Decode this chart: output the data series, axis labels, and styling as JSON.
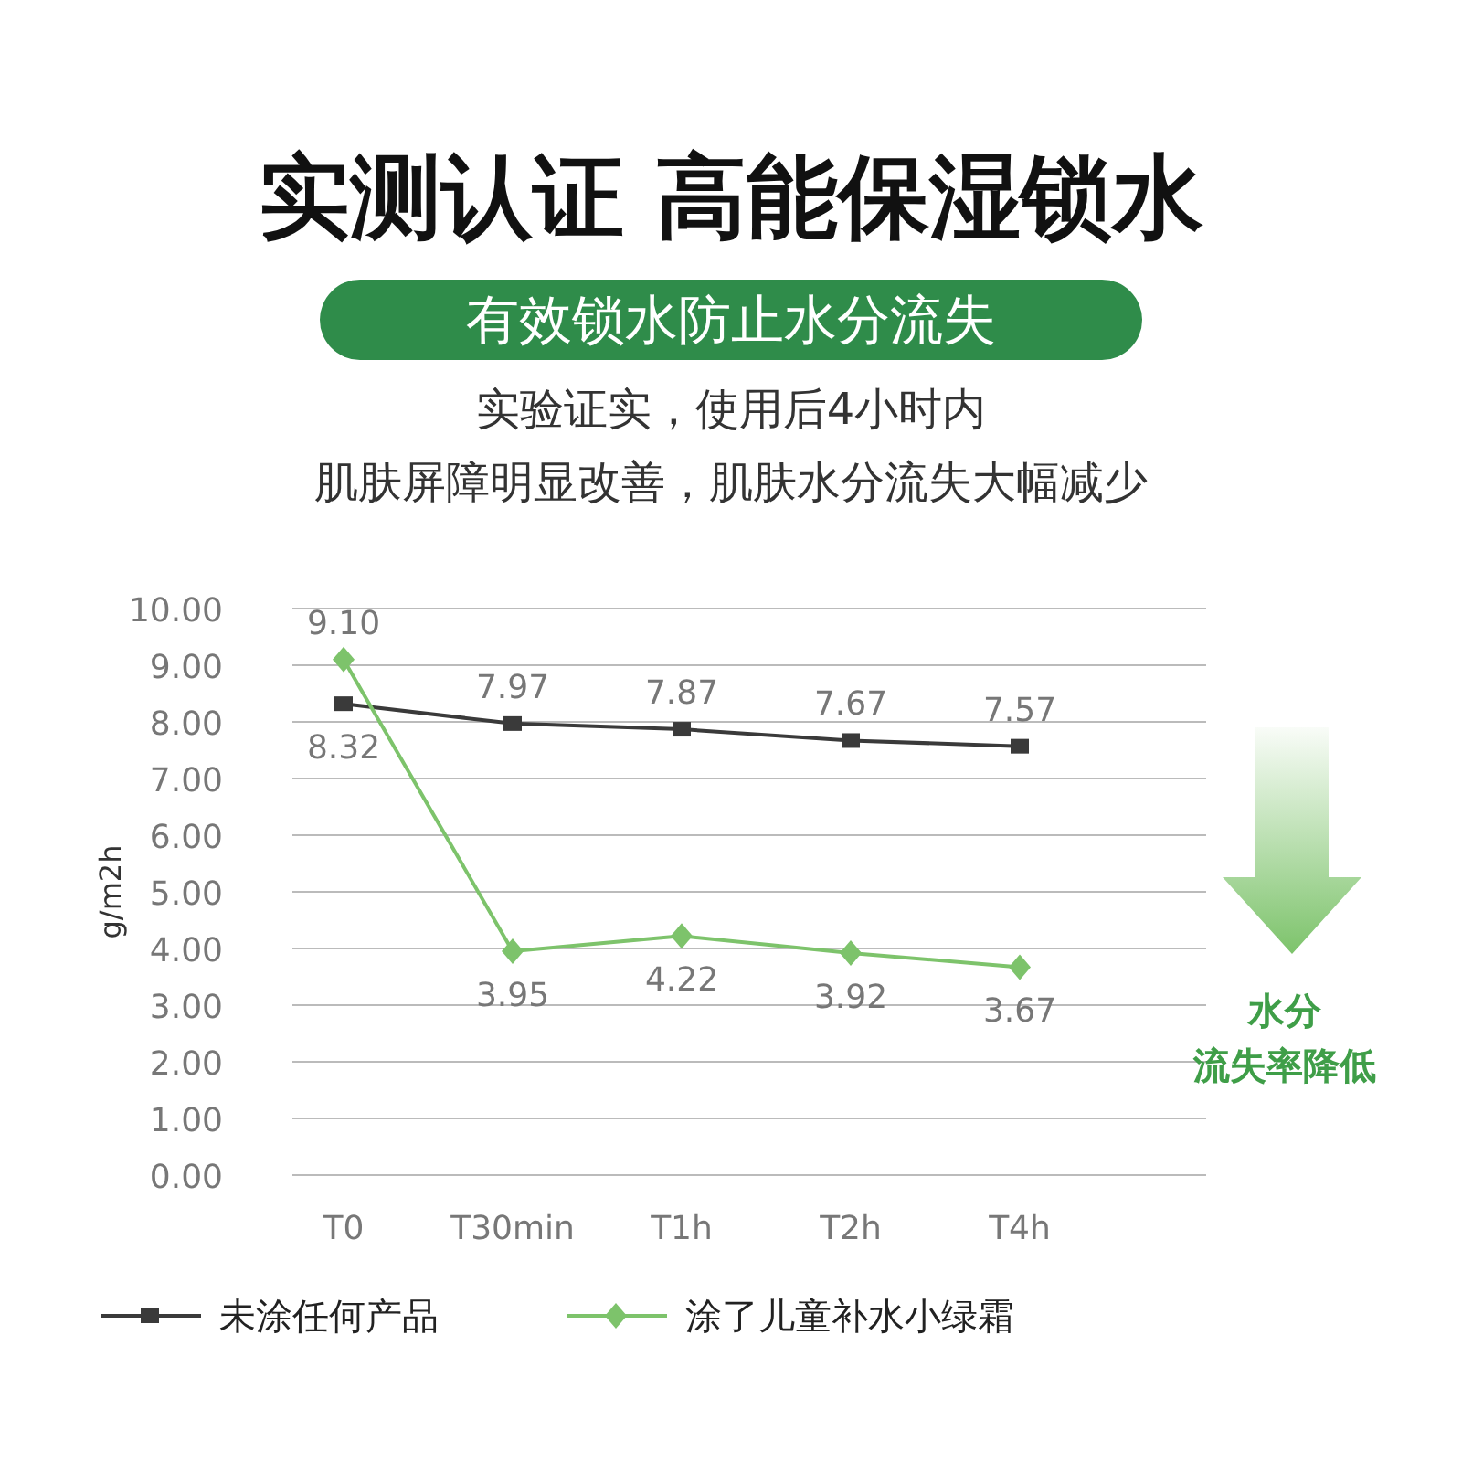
{
  "chart_data": {
    "type": "line",
    "title": "实测认证  高能保湿锁水",
    "subtitle": "有效锁水防止水分流失",
    "annotations": [
      "实验证实，使用后4小时内",
      "肌肤屏障明显改善，肌肤水分流失大幅减少",
      "水分",
      "流失率降低"
    ],
    "ylabel": "g/m2h",
    "categories": [
      "T0",
      "T30min",
      "T1h",
      "T2h",
      "T4h"
    ],
    "ylim": [
      0,
      10
    ],
    "yticks": [
      {
        "value": 0,
        "label": "0.00"
      },
      {
        "value": 1,
        "label": "1.00"
      },
      {
        "value": 2,
        "label": "2.00"
      },
      {
        "value": 3,
        "label": "3.00"
      },
      {
        "value": 4,
        "label": "4.00"
      },
      {
        "value": 5,
        "label": "5.00"
      },
      {
        "value": 6,
        "label": "6.00"
      },
      {
        "value": 7,
        "label": "7.00"
      },
      {
        "value": 8,
        "label": "8.00"
      },
      {
        "value": 9,
        "label": "9.00"
      },
      {
        "value": 10,
        "label": "10.00"
      }
    ],
    "grid": "y",
    "legend": "bottom",
    "series": [
      {
        "name": "未涂任何产品",
        "color": "#3a3a3a",
        "marker": "square",
        "values": [
          8.32,
          7.97,
          7.87,
          7.67,
          7.57
        ],
        "value_labels": [
          "8.32",
          "7.97",
          "7.87",
          "7.67",
          "7.57"
        ]
      },
      {
        "name": "涂了儿童补水小绿霜",
        "color": "#7dc36b",
        "marker": "diamond",
        "values": [
          9.1,
          3.95,
          4.22,
          3.92,
          3.67
        ],
        "value_labels": [
          "9.10",
          "3.95",
          "4.22",
          "3.92",
          "3.67"
        ]
      }
    ]
  }
}
